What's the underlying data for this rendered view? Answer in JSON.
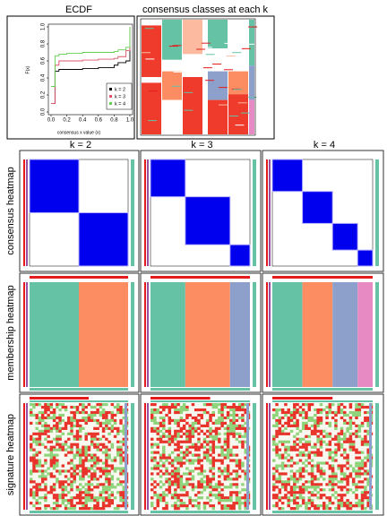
{
  "chart_data": {
    "type": "line",
    "title": "ECDF",
    "xlabel": "consensus x value (x)",
    "ylabel": "F(x)",
    "x": [
      0,
      0.05,
      0.1,
      0.2,
      0.4,
      0.6,
      0.8,
      0.85,
      0.95,
      1
    ],
    "series": [
      {
        "name": "k = 2",
        "color": "#000000",
        "values": [
          0.1,
          0.48,
          0.5,
          0.5,
          0.51,
          0.52,
          0.55,
          0.58,
          0.6,
          1
        ]
      },
      {
        "name": "k = 3",
        "color": "#df536b",
        "values": [
          0.1,
          0.55,
          0.6,
          0.6,
          0.61,
          0.62,
          0.63,
          0.65,
          0.72,
          1
        ]
      },
      {
        "name": "k = 4",
        "color": "#61d04f",
        "values": [
          0.3,
          0.66,
          0.68,
          0.69,
          0.7,
          0.7,
          0.71,
          0.73,
          0.76,
          1
        ]
      }
    ],
    "xlim": [
      0,
      1
    ],
    "ylim": [
      0,
      1
    ],
    "xticks": [
      {
        "value": 0,
        "label": "0.0"
      },
      {
        "value": 0.2,
        "label": "0.2"
      },
      {
        "value": 0.4,
        "label": "0.4"
      },
      {
        "value": 0.6,
        "label": "0.6"
      },
      {
        "value": 0.8,
        "label": "0.8"
      },
      {
        "value": 1,
        "label": "1.0"
      }
    ],
    "yticks": [
      {
        "value": 0,
        "label": "0.0"
      },
      {
        "value": 0.2,
        "label": "0.2"
      },
      {
        "value": 0.4,
        "label": "0.4"
      },
      {
        "value": 0.6,
        "label": "0.6"
      },
      {
        "value": 0.8,
        "label": "0.8"
      },
      {
        "value": 1,
        "label": "1.0"
      }
    ],
    "legend": "bottom-right"
  },
  "classes_title": "consensus classes at each k",
  "columns": [
    "k = 2",
    "k = 3",
    "k = 4"
  ],
  "rows": [
    "consensus heatmap",
    "membership heatmap",
    "signature heatmap"
  ]
}
